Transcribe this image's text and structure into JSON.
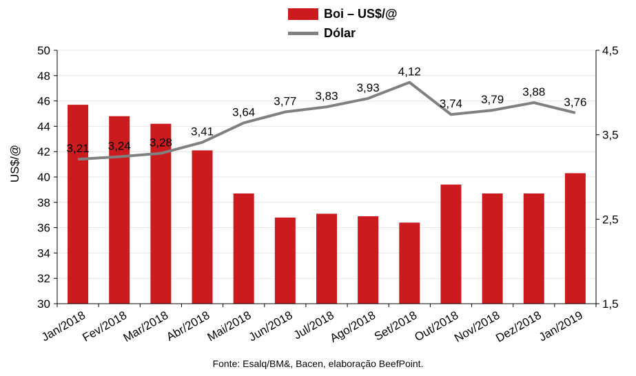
{
  "chart_data": {
    "type": "bar",
    "categories": [
      "Jan/2018",
      "Fev/2018",
      "Mar/2018",
      "Abr/2018",
      "Mai/2018",
      "Jun/2018",
      "Jul/2018",
      "Ago/2018",
      "Set/2018",
      "Out/2018",
      "Nov/2018",
      "Dez/2018",
      "Jan/2019"
    ],
    "series": [
      {
        "name": "Boi – US$/@",
        "type": "bar",
        "axis": "left",
        "color": "#cc1b1f",
        "values": [
          45.7,
          44.8,
          44.2,
          42.1,
          38.7,
          36.8,
          37.1,
          36.9,
          36.4,
          39.4,
          38.7,
          38.7,
          40.3
        ]
      },
      {
        "name": "Dólar",
        "type": "line",
        "axis": "right",
        "color": "#808080",
        "values": [
          3.21,
          3.24,
          3.28,
          3.41,
          3.64,
          3.77,
          3.83,
          3.93,
          4.12,
          3.74,
          3.79,
          3.88,
          3.76
        ],
        "labels": [
          "3,21",
          "3,24",
          "3,28",
          "3,41",
          "3,64",
          "3,77",
          "3,83",
          "3,93",
          "4,12",
          "3,74",
          "3,79",
          "3,88",
          "3,76"
        ]
      }
    ],
    "ylabel": "US$/@",
    "ylim": [
      30,
      50
    ],
    "yticks": [
      "30",
      "32",
      "34",
      "36",
      "38",
      "40",
      "42",
      "44",
      "46",
      "48",
      "50"
    ],
    "y2lim": [
      1.5,
      4.5
    ],
    "y2ticks": [
      "1,5",
      "2,5",
      "3,5",
      "4,5"
    ],
    "grid": true,
    "legend_position": "top-center",
    "source": "Fonte: Esalq/BM&, Bacen, elaboração BeefPoint."
  }
}
